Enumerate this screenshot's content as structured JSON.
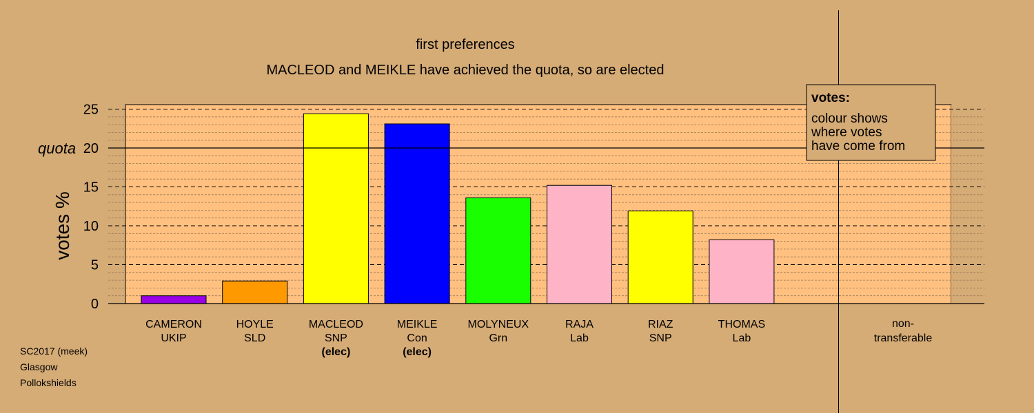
{
  "chart_data": {
    "type": "bar",
    "title": "first preferences",
    "subtitle": "MACLEOD and MEIKLE have achieved the quota, so are elected",
    "ylabel": "votes %",
    "ylim": [
      0,
      25
    ],
    "yticks": [
      0,
      5,
      10,
      15,
      20,
      25
    ],
    "quota": 20,
    "quota_label": "quota",
    "grid": true,
    "categories": [
      {
        "name": "CAMERON",
        "party": "UKIP",
        "elected": "",
        "value": 1.0,
        "color": "#9900E6"
      },
      {
        "name": "HOYLE",
        "party": "SLD",
        "elected": "",
        "value": 2.9,
        "color": "#FF9900"
      },
      {
        "name": "MACLEOD",
        "party": "SNP",
        "elected": "(elec)",
        "value": 24.4,
        "color": "#FFFF00"
      },
      {
        "name": "MEIKLE",
        "party": "Con",
        "elected": "(elec)",
        "value": 23.1,
        "color": "#0000FF"
      },
      {
        "name": "MOLYNEUX",
        "party": "Grn",
        "elected": "",
        "value": 13.6,
        "color": "#1AFF00"
      },
      {
        "name": "RAJA",
        "party": "Lab",
        "elected": "",
        "value": 15.2,
        "color": "#FFB3C6"
      },
      {
        "name": "RIAZ",
        "party": "SNP",
        "elected": "",
        "value": 11.9,
        "color": "#FFFF00"
      },
      {
        "name": "THOMAS",
        "party": "Lab",
        "elected": "",
        "value": 8.2,
        "color": "#FFB3C6"
      }
    ],
    "nontransferable": {
      "line1": "non-",
      "line2": "transferable",
      "value": 0
    },
    "legend": {
      "title": "votes:",
      "lines": [
        "colour shows",
        "where votes",
        "have come from"
      ],
      "placement": "top-right"
    }
  },
  "footer": {
    "lines": [
      "SC2017 (meek)",
      "Glasgow",
      "Pollokshields"
    ]
  },
  "colors": {
    "background": "#D5AB76",
    "plot_background": "#FFC080"
  }
}
